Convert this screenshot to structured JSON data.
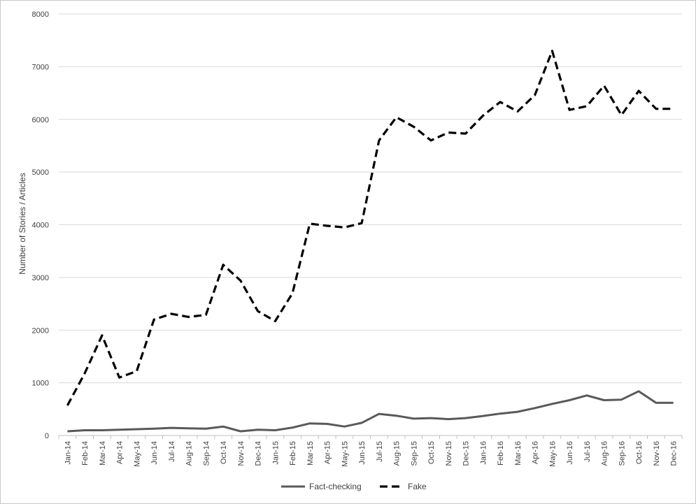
{
  "chart_data": {
    "type": "line",
    "title": "",
    "xlabel": "",
    "ylabel": "Number of Stories / Articles",
    "ylim": [
      0,
      8000
    ],
    "yticks": [
      0,
      1000,
      2000,
      3000,
      4000,
      5000,
      6000,
      7000,
      8000
    ],
    "grid": "horizontal",
    "legend_position": "bottom",
    "categories": [
      "Jan-14",
      "Feb-14",
      "Mar-14",
      "Apr-14",
      "May-14",
      "Jun-14",
      "Jul-14",
      "Aug-14",
      "Sep-14",
      "Oct-14",
      "Nov-14",
      "Dec-14",
      "Jan-15",
      "Feb-15",
      "Mar-15",
      "Apr-15",
      "May-15",
      "Jun-15",
      "Jul-15",
      "Aug-15",
      "Sep-15",
      "Oct-15",
      "Nov-15",
      "Dec-15",
      "Jan-16",
      "Feb-16",
      "Mar-16",
      "Apr-16",
      "May-16",
      "Jun-16",
      "Jul-16",
      "Aug-16",
      "Sep-16",
      "Oct-16",
      "Nov-16",
      "Dec-16"
    ],
    "series": [
      {
        "name": "Fact-checking",
        "color": "#595959",
        "style": "solid",
        "values": [
          80,
          100,
          100,
          110,
          120,
          130,
          145,
          135,
          130,
          170,
          80,
          110,
          100,
          150,
          230,
          220,
          170,
          240,
          410,
          375,
          320,
          330,
          310,
          330,
          370,
          415,
          450,
          520,
          600,
          670,
          760,
          670,
          680,
          840,
          620,
          620
        ]
      },
      {
        "name": "Fake",
        "color": "#000000",
        "style": "dashed",
        "values": [
          570,
          1180,
          1900,
          1100,
          1220,
          2200,
          2310,
          2250,
          2290,
          3240,
          2940,
          2360,
          2170,
          2700,
          4020,
          3980,
          3950,
          4030,
          5600,
          6040,
          5860,
          5600,
          5750,
          5730,
          6070,
          6330,
          6150,
          6460,
          7300,
          6180,
          6250,
          6640,
          6080,
          6540,
          6200,
          6200
        ]
      }
    ]
  }
}
